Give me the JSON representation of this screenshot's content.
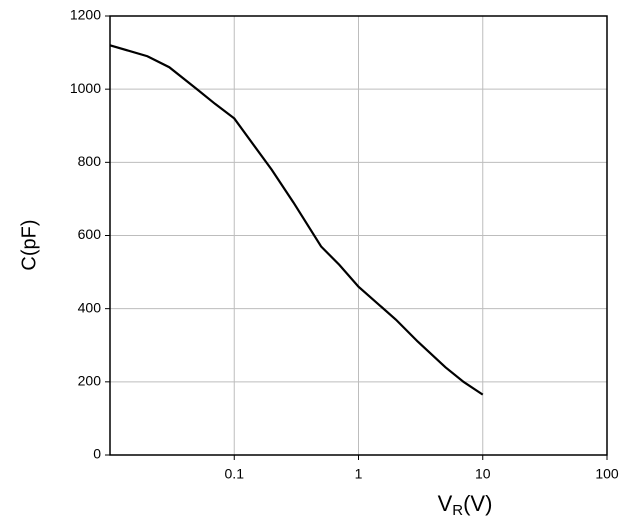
{
  "chart_data": {
    "type": "line",
    "ylabel": "C(pF)",
    "xlabel_parts": [
      "V",
      "R",
      "(V)"
    ],
    "x": [
      0.01,
      0.02,
      0.03,
      0.05,
      0.07,
      0.1,
      0.2,
      0.3,
      0.5,
      0.7,
      1,
      2,
      3,
      5,
      7,
      10
    ],
    "series": [
      {
        "color": "#000000",
        "values": [
          1120,
          1090,
          1060,
          1000,
          960,
          920,
          780,
          690,
          570,
          520,
          460,
          370,
          310,
          240,
          200,
          165
        ]
      }
    ],
    "xscale": "log",
    "xlim": [
      0.01,
      100
    ],
    "xticks": [
      0.1,
      1,
      10,
      100
    ],
    "ylim": [
      0,
      1200
    ],
    "yticks": [
      0,
      200,
      400,
      600,
      800,
      1000,
      1200
    ],
    "grid": true
  }
}
